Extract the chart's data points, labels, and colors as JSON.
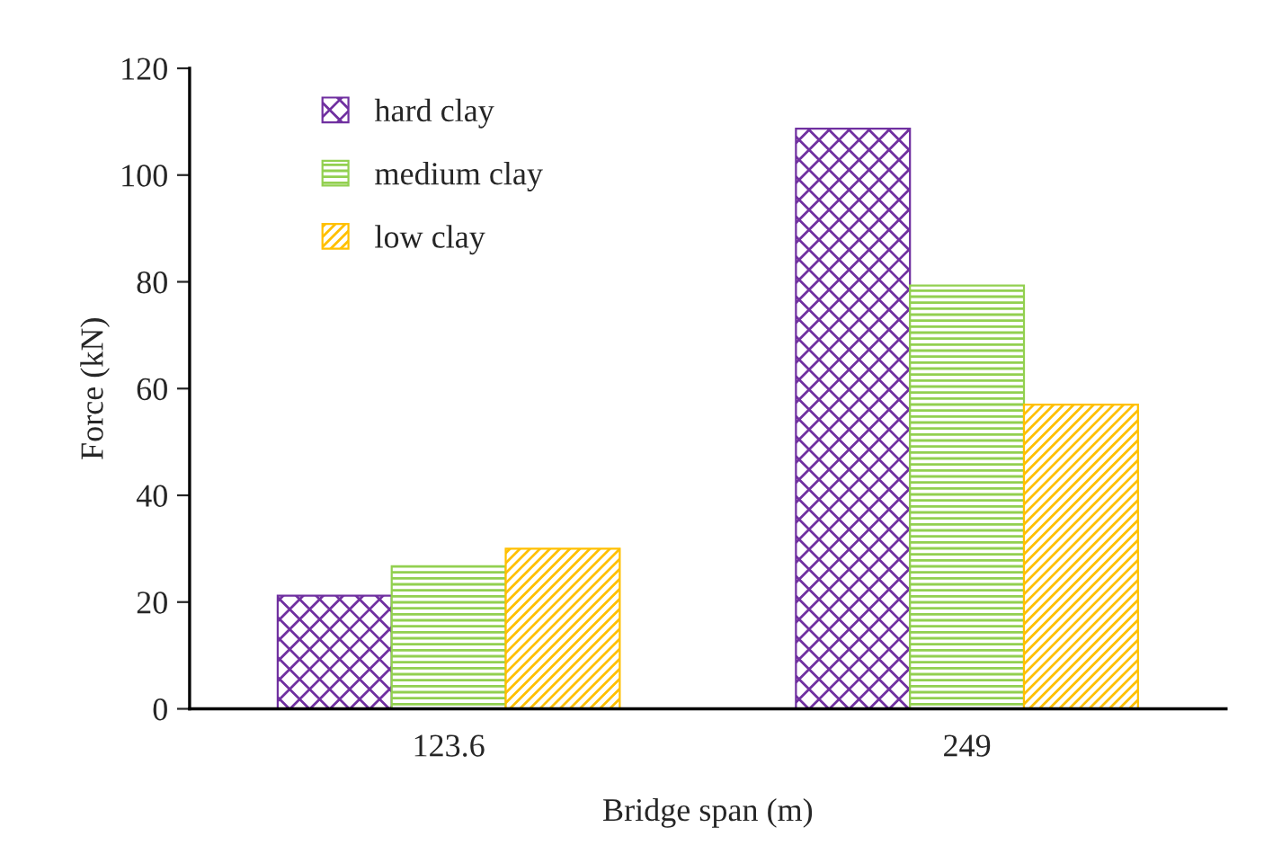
{
  "chart_data": {
    "type": "bar",
    "xlabel": "Bridge span (m)",
    "ylabel": "Force (kN)",
    "categories": [
      "123.6",
      "249"
    ],
    "series": [
      {
        "name": "hard clay",
        "color": "#7030a0",
        "values": [
          21.2,
          108.7
        ]
      },
      {
        "name": "medium clay",
        "color": "#92d050",
        "values": [
          26.7,
          79.3
        ]
      },
      {
        "name": "low clay",
        "color": "#ffc000",
        "values": [
          30.0,
          57.0
        ]
      }
    ],
    "ylim": [
      0,
      120
    ],
    "yticks": [
      0,
      20,
      40,
      60,
      80,
      100,
      120
    ],
    "grid": false,
    "legend": "top left"
  }
}
